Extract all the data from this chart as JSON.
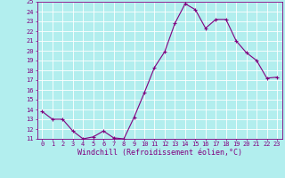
{
  "x": [
    0,
    1,
    2,
    3,
    4,
    5,
    6,
    7,
    8,
    9,
    10,
    11,
    12,
    13,
    14,
    15,
    16,
    17,
    18,
    19,
    20,
    21,
    22,
    23
  ],
  "y": [
    13.8,
    13.0,
    13.0,
    11.8,
    11.0,
    11.2,
    11.8,
    11.1,
    11.0,
    13.2,
    15.7,
    18.3,
    19.9,
    22.8,
    24.8,
    24.2,
    22.3,
    23.2,
    23.2,
    21.0,
    19.8,
    19.0,
    17.2,
    17.3
  ],
  "line_color": "#800080",
  "marker": "+",
  "bg_color": "#b2eeee",
  "grid_color": "#ffffff",
  "xlabel": "Windchill (Refroidissement éolien,°C)",
  "ylabel_ticks": [
    11,
    12,
    13,
    14,
    15,
    16,
    17,
    18,
    19,
    20,
    21,
    22,
    23,
    24,
    25
  ],
  "xlim": [
    -0.5,
    23.5
  ],
  "ylim": [
    11,
    25
  ],
  "xlabel_color": "#800080",
  "tick_color": "#800080",
  "font_name": "monospace",
  "tick_fontsize": 5.0,
  "xlabel_fontsize": 6.0
}
